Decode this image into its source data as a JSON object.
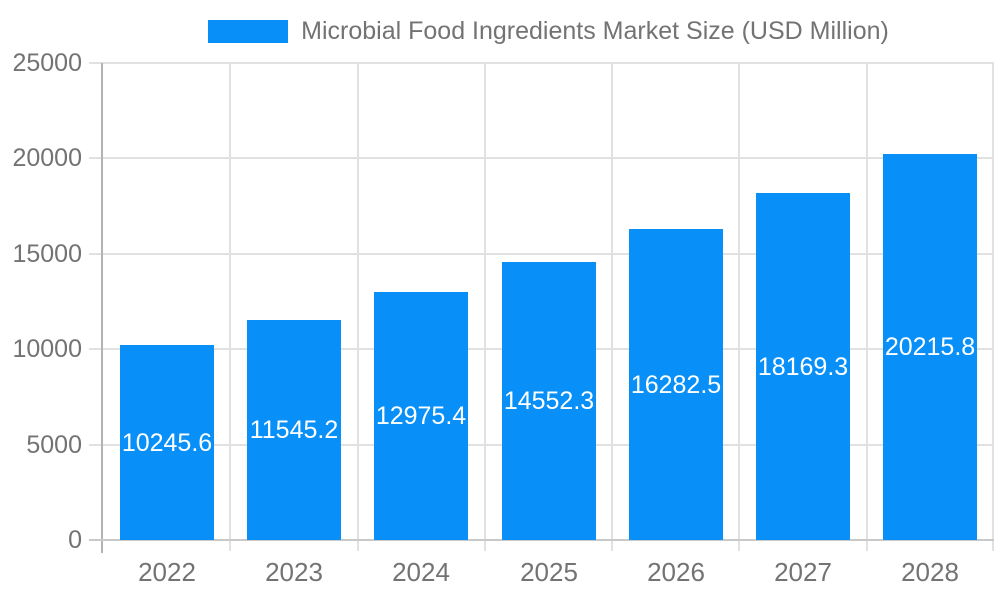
{
  "chart_data": {
    "type": "bar",
    "title": "Microbial Food Ingredients Market Size (USD Million)",
    "categories": [
      "2022",
      "2023",
      "2024",
      "2025",
      "2026",
      "2027",
      "2028"
    ],
    "values": [
      10245.6,
      11545.2,
      12975.4,
      14552.3,
      16282.5,
      18169.3,
      20215.8
    ],
    "value_labels": [
      "10245.6",
      "11545.2",
      "12975.4",
      "14552.3",
      "16282.5",
      "18169.3",
      "20215.8"
    ],
    "xlabel": "",
    "ylabel": "",
    "ylim": [
      0,
      25000
    ],
    "yticks": [
      0,
      5000,
      10000,
      15000,
      20000,
      25000
    ],
    "ytick_labels": [
      "0",
      "5000",
      "10000",
      "15000",
      "20000",
      "25000"
    ],
    "grid": true,
    "legend_position": "top",
    "bar_label_position": "inside-center",
    "colors": {
      "bar": "#0890F8",
      "bar_label": "#FFFFFF",
      "grid": "#E1E1E1",
      "y_axis_line": "#B3B3B3",
      "x_axis_line": "#C9C9C9",
      "tick_text": "#737373",
      "title_text": "#737373",
      "background": "#FFFFFF"
    }
  }
}
